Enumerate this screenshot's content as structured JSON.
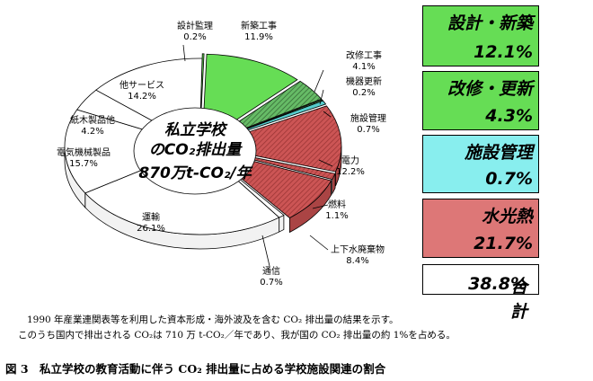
{
  "chart_data": {
    "type": "pie",
    "center_label": {
      "line1": "私立学校",
      "line2": "のCO₂排出量",
      "line3": "870万t-CO₂/年"
    },
    "slices": [
      {
        "name": "設計監理",
        "value": 0.2,
        "label": "0.2%",
        "group": "design"
      },
      {
        "name": "新築工事",
        "value": 11.9,
        "label": "11.9%",
        "group": "design"
      },
      {
        "name": "改修工事",
        "value": 4.1,
        "label": "4.1%",
        "group": "renovation"
      },
      {
        "name": "機器更新",
        "value": 0.2,
        "label": "0.2%",
        "group": "renovation"
      },
      {
        "name": "施設管理",
        "value": 0.7,
        "label": "0.7%",
        "group": "management"
      },
      {
        "name": "電力",
        "value": 12.2,
        "label": "12.2%",
        "group": "utility"
      },
      {
        "name": "燃料",
        "value": 1.1,
        "label": "1.1%",
        "group": "utility"
      },
      {
        "name": "上下水廃棄物",
        "value": 8.4,
        "label": "8.4%",
        "group": "utility"
      },
      {
        "name": "通信",
        "value": 0.7,
        "label": "0.7%",
        "group": "other"
      },
      {
        "name": "運輸",
        "value": 26.1,
        "label": "26.1%",
        "group": "other"
      },
      {
        "name": "電気機械製品",
        "value": 15.7,
        "label": "15.7%",
        "group": "other"
      },
      {
        "name": "紙木製品他",
        "value": 4.2,
        "label": "4.2%",
        "group": "other"
      },
      {
        "name": "他サービス",
        "value": 14.2,
        "label": "14.2%",
        "group": "other"
      }
    ],
    "legend": [
      {
        "name": "設計・新築",
        "value": "12.1%",
        "color": "#66dd55"
      },
      {
        "name": "改修・更新",
        "value": "4.3%",
        "color": "#66dd55"
      },
      {
        "name": "施設管理",
        "value": "0.7%",
        "color": "#88eeee"
      },
      {
        "name": "水光熱",
        "value": "21.7%",
        "color": "#dd7777"
      }
    ],
    "total": {
      "name": "合計",
      "value": "38.8%"
    },
    "colors": {
      "design": "#66dd55",
      "renovation": "#66bb66",
      "management": "#55cccc",
      "utility": "#cc5555",
      "other": "#ffffff"
    }
  },
  "notes": {
    "line1": "1990 年産業連関表等を利用した資本形成・海外波及を含む CO₂ 排出量の結果を示す。",
    "line2": "このうち国内で排出される CO₂は 710 万 t-CO₂／年であり、我が国の CO₂ 排出量の約 1%を占める。"
  },
  "caption": "図 3　私立学校の教育活動に伴う CO₂ 排出量に占める学校施設関連の割合"
}
